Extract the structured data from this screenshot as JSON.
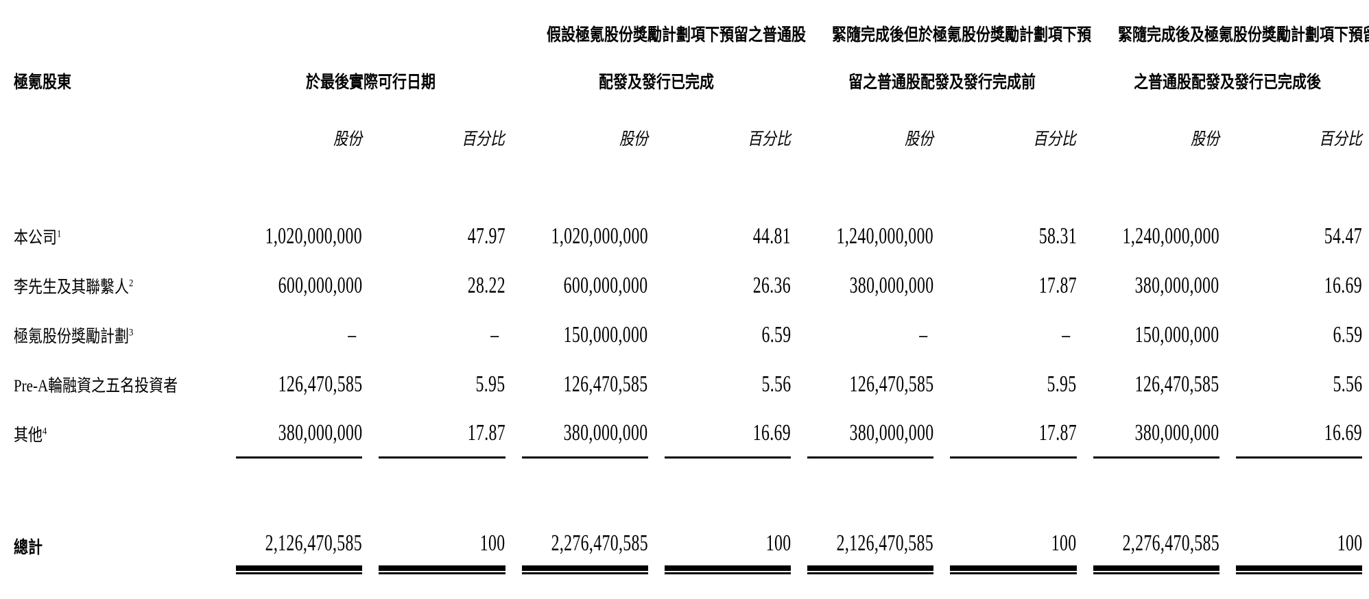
{
  "table": {
    "row_header": "極氪股東",
    "col_groups": [
      {
        "line1": "",
        "line2": "於最後實際可行日期"
      },
      {
        "line1": "假設極氪股份獎勵計劃項下預留之普通股",
        "line2": "配發及發行已完成"
      },
      {
        "line1": "緊隨完成後但於極氪股份獎勵計劃項下預",
        "line2": "留之普通股配發及發行完成前"
      },
      {
        "line1": "緊隨完成後及極氪股份獎勵計劃項下預留",
        "line2": "之普通股配發及發行已完成後"
      }
    ],
    "sub_headers": {
      "shares": "股份",
      "percentage": "百分比"
    },
    "rows": [
      {
        "label": "本公司",
        "footnote": "1",
        "values": [
          "1,020,000,000",
          "47.97",
          "1,020,000,000",
          "44.81",
          "1,240,000,000",
          "58.31",
          "1,240,000,000",
          "54.47"
        ]
      },
      {
        "label": "李先生及其聯繫人",
        "footnote": "2",
        "values": [
          "600,000,000",
          "28.22",
          "600,000,000",
          "26.36",
          "380,000,000",
          "17.87",
          "380,000,000",
          "16.69"
        ]
      },
      {
        "label": "極氪股份獎勵計劃",
        "footnote": "3",
        "values": [
          "–",
          "–",
          "150,000,000",
          "6.59",
          "–",
          "–",
          "150,000,000",
          "6.59"
        ]
      },
      {
        "label": "Pre-A輪融資之五名投資者",
        "footnote": "",
        "values": [
          "126,470,585",
          "5.95",
          "126,470,585",
          "5.56",
          "126,470,585",
          "5.95",
          "126,470,585",
          "5.56"
        ]
      },
      {
        "label": "其他",
        "footnote": "4",
        "values": [
          "380,000,000",
          "17.87",
          "380,000,000",
          "16.69",
          "380,000,000",
          "17.87",
          "380,000,000",
          "16.69"
        ]
      }
    ],
    "total": {
      "label": "總計",
      "values": [
        "2,126,470,585",
        "100",
        "2,276,470,585",
        "100",
        "2,126,470,585",
        "100",
        "2,276,470,585",
        "100"
      ]
    }
  }
}
